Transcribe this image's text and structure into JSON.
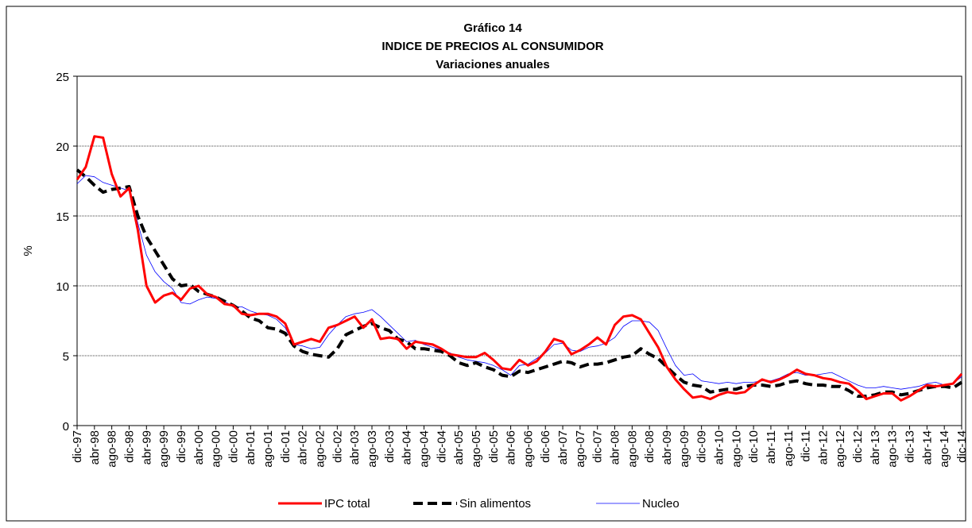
{
  "chart_data": {
    "type": "line",
    "title": "Gráfico 14",
    "subtitle": "INDICE DE PRECIOS AL CONSUMIDOR",
    "subtitle2": "Variaciones anuales",
    "y_label": "%",
    "categories": [
      "dic-97",
      null,
      "abr-98",
      null,
      "ago-98",
      null,
      "dic-98",
      null,
      "abr-99",
      null,
      "ago-99",
      null,
      "dic-99",
      null,
      "abr-00",
      null,
      "ago-00",
      null,
      "dic-00",
      null,
      "abr-01",
      null,
      "ago-01",
      null,
      "dic-01",
      null,
      "abr-02",
      null,
      "ago-02",
      null,
      "dic-02",
      null,
      "abr-03",
      null,
      "ago-03",
      null,
      "dic-03",
      null,
      "abr-04",
      null,
      "ago-04",
      null,
      "dic-04",
      null,
      "abr-05",
      null,
      "ago-05",
      null,
      "dic-05",
      null,
      "abr-06",
      null,
      "ago-06",
      null,
      "dic-06",
      null,
      "abr-07",
      null,
      "ago-07",
      null,
      "dic-07",
      null,
      "abr-08",
      null,
      "ago-08",
      null,
      "dic-08",
      null,
      "abr-09",
      null,
      "ago-09",
      null,
      "dic-09",
      null,
      "abr-10",
      null,
      "ago-10",
      null,
      "dic-10",
      null,
      "abr-11",
      null,
      "ago-11",
      null,
      "dic-11",
      null,
      "abr-12",
      null,
      "ago-12",
      null,
      "dic-12",
      null,
      "abr-13",
      null,
      "ago-13",
      null,
      "dic-13",
      null,
      "abr-14",
      null,
      "ago-14",
      null,
      "dic-14"
    ],
    "series": [
      {
        "name": "IPC total",
        "color": "#ff0000",
        "style": "solid",
        "width": 3,
        "values": [
          17.6,
          18.5,
          20.7,
          20.6,
          18.0,
          16.4,
          17.0,
          14.0,
          10.0,
          8.8,
          9.3,
          9.5,
          9.0,
          9.8,
          10.0,
          9.4,
          9.2,
          8.7,
          8.6,
          8.0,
          7.9,
          8.0,
          8.0,
          7.8,
          7.3,
          5.8,
          6.0,
          6.2,
          6.0,
          7.0,
          7.2,
          7.5,
          7.8,
          7.0,
          7.6,
          6.2,
          6.3,
          6.2,
          5.5,
          6.0,
          5.9,
          5.8,
          5.5,
          5.1,
          5.0,
          4.9,
          4.9,
          5.2,
          4.7,
          4.1,
          4.0,
          4.7,
          4.3,
          4.6,
          5.3,
          6.2,
          6.0,
          5.1,
          5.4,
          5.8,
          6.3,
          5.8,
          7.2,
          7.8,
          7.9,
          7.6,
          6.6,
          5.6,
          4.2,
          3.3,
          2.6,
          2.0,
          2.1,
          1.9,
          2.2,
          2.4,
          2.3,
          2.4,
          2.9,
          3.3,
          3.1,
          3.3,
          3.6,
          4.0,
          3.7,
          3.6,
          3.4,
          3.3,
          3.1,
          3.0,
          2.5,
          1.9,
          2.1,
          2.3,
          2.3,
          1.8,
          2.1,
          2.5,
          2.9,
          2.8,
          2.9,
          3.0,
          3.7
        ]
      },
      {
        "name": "Sin alimentos",
        "color": "#000000",
        "style": "dashed",
        "width": 4,
        "values": [
          18.3,
          17.8,
          17.2,
          16.7,
          16.9,
          17.0,
          17.1,
          15.0,
          13.5,
          12.5,
          11.5,
          10.5,
          10.0,
          10.1,
          9.6,
          9.4,
          9.2,
          8.9,
          8.6,
          8.2,
          7.7,
          7.5,
          7.0,
          6.9,
          6.6,
          5.7,
          5.3,
          5.1,
          5.0,
          4.9,
          5.5,
          6.5,
          6.8,
          7.1,
          7.3,
          7.0,
          6.8,
          6.2,
          6.0,
          5.5,
          5.5,
          5.4,
          5.3,
          5.0,
          4.5,
          4.3,
          4.5,
          4.2,
          4.0,
          3.6,
          3.5,
          3.9,
          3.8,
          4.0,
          4.2,
          4.4,
          4.6,
          4.5,
          4.2,
          4.4,
          4.4,
          4.5,
          4.7,
          4.9,
          5.0,
          5.5,
          5.1,
          4.8,
          4.2,
          3.6,
          3.1,
          2.9,
          2.8,
          2.4,
          2.5,
          2.6,
          2.6,
          2.8,
          2.9,
          2.9,
          2.8,
          2.9,
          3.1,
          3.2,
          3.0,
          2.9,
          2.9,
          2.8,
          2.8,
          2.5,
          2.1,
          2.1,
          2.2,
          2.4,
          2.4,
          2.2,
          2.3,
          2.5,
          2.7,
          2.8,
          2.8,
          2.7,
          3.1
        ]
      },
      {
        "name": "Nucleo",
        "color": "#0000ff",
        "style": "solid",
        "width": 0.8,
        "values": [
          17.3,
          17.9,
          17.8,
          17.4,
          17.2,
          17.0,
          16.8,
          14.5,
          12.2,
          11.0,
          10.3,
          9.8,
          8.8,
          8.7,
          9.0,
          9.2,
          9.1,
          8.9,
          8.5,
          8.5,
          8.2,
          8.0,
          7.9,
          7.6,
          7.0,
          5.8,
          5.7,
          5.5,
          5.6,
          6.5,
          7.2,
          7.8,
          8.0,
          8.1,
          8.3,
          7.8,
          7.2,
          6.6,
          6.0,
          6.1,
          5.8,
          5.6,
          5.4,
          5.2,
          4.9,
          4.7,
          4.6,
          4.5,
          4.3,
          4.0,
          3.6,
          4.3,
          4.4,
          4.8,
          5.2,
          5.8,
          5.9,
          5.4,
          5.3,
          5.6,
          5.7,
          5.9,
          6.3,
          7.1,
          7.5,
          7.5,
          7.4,
          6.8,
          5.5,
          4.3,
          3.6,
          3.7,
          3.2,
          3.1,
          3.0,
          3.1,
          3.0,
          3.1,
          3.1,
          3.2,
          3.2,
          3.4,
          3.7,
          3.8,
          3.6,
          3.6,
          3.7,
          3.8,
          3.5,
          3.2,
          2.9,
          2.7,
          2.7,
          2.8,
          2.7,
          2.6,
          2.7,
          2.8,
          3.0,
          3.1,
          2.9,
          3.0,
          3.5
        ]
      }
    ],
    "ylim": [
      0,
      25
    ],
    "yticks": [
      0,
      5,
      10,
      15,
      20,
      25
    ],
    "grid": true,
    "legend": "bottom"
  }
}
